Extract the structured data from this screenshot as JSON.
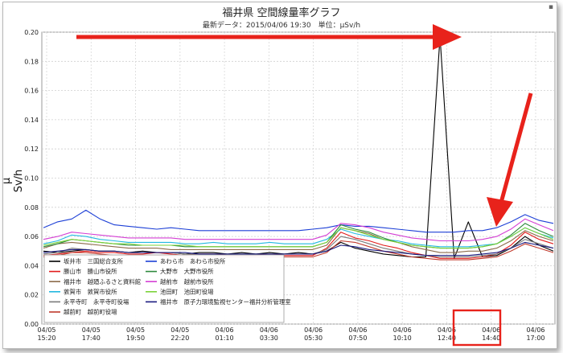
{
  "chart_data": {
    "type": "line",
    "title": "福井県 空間線量率グラフ",
    "subtitle": "最新データ：2015/04/06 19:30　単位：μSv/h",
    "ylabel": "μ Sv/h",
    "ylim": [
      0,
      0.2
    ],
    "yticks": [
      "0.00",
      "0.02",
      "0.04",
      "0.06",
      "0.08",
      "0.10",
      "0.12",
      "0.14",
      "0.16",
      "0.18",
      "0.20"
    ],
    "xticks": [
      {
        "d": "04/05",
        "t": "15:20"
      },
      {
        "d": "04/05",
        "t": "17:40"
      },
      {
        "d": "04/05",
        "t": "19:50"
      },
      {
        "d": "04/05",
        "t": "22:20"
      },
      {
        "d": "04/06",
        "t": "01:10"
      },
      {
        "d": "04/06",
        "t": "03:30"
      },
      {
        "d": "04/06",
        "t": "05:30"
      },
      {
        "d": "04/06",
        "t": "07:50"
      },
      {
        "d": "04/06",
        "t": "10:10"
      },
      {
        "d": "04/06",
        "t": "12:40"
      },
      {
        "d": "04/06",
        "t": "14:40"
      },
      {
        "d": "04/06",
        "t": "17:00"
      }
    ],
    "grid": true,
    "legend_position": "bottom-left",
    "series": [
      {
        "name": "坂井市　三国総合支所",
        "color": "#000000",
        "values": [
          0.05,
          0.049,
          0.05,
          0.051,
          0.05,
          0.05,
          0.049,
          0.05,
          0.049,
          0.049,
          0.048,
          0.049,
          0.049,
          0.048,
          0.049,
          0.048,
          0.049,
          0.048,
          0.049,
          0.048,
          0.05,
          0.056,
          0.052,
          0.05,
          0.048,
          0.047,
          0.046,
          0.046,
          0.197,
          0.045,
          0.07,
          0.046,
          0.047,
          0.052,
          0.06,
          0.054,
          0.05
        ]
      },
      {
        "name": "勝山市　勝山市役所",
        "color": "#e11b1b",
        "values": [
          0.047,
          0.048,
          0.049,
          0.05,
          0.049,
          0.049,
          0.048,
          0.048,
          0.049,
          0.048,
          0.047,
          0.048,
          0.048,
          0.047,
          0.047,
          0.047,
          0.048,
          0.047,
          0.047,
          0.047,
          0.052,
          0.063,
          0.059,
          0.057,
          0.054,
          0.052,
          0.049,
          0.047,
          0.045,
          0.045,
          0.045,
          0.046,
          0.048,
          0.054,
          0.063,
          0.058,
          0.055
        ]
      },
      {
        "name": "福井市　越廼ふるさと資料館",
        "color": "#8c6b4a",
        "values": [
          0.052,
          0.055,
          0.056,
          0.055,
          0.054,
          0.053,
          0.052,
          0.052,
          0.052,
          0.051,
          0.051,
          0.051,
          0.051,
          0.051,
          0.051,
          0.051,
          0.051,
          0.051,
          0.051,
          0.051,
          0.054,
          0.066,
          0.064,
          0.062,
          0.058,
          0.056,
          0.053,
          0.051,
          0.049,
          0.049,
          0.05,
          0.05,
          0.052,
          0.057,
          0.064,
          0.06,
          0.057
        ]
      },
      {
        "name": "敦賀市　敦賀市役所",
        "color": "#22b8e0",
        "values": [
          0.055,
          0.057,
          0.061,
          0.06,
          0.058,
          0.057,
          0.056,
          0.056,
          0.056,
          0.056,
          0.055,
          0.055,
          0.056,
          0.055,
          0.055,
          0.055,
          0.056,
          0.055,
          0.055,
          0.055,
          0.058,
          0.065,
          0.062,
          0.06,
          0.058,
          0.057,
          0.055,
          0.054,
          0.053,
          0.053,
          0.053,
          0.054,
          0.055,
          0.06,
          0.066,
          0.062,
          0.059
        ]
      },
      {
        "name": "永平寺町　永平寺町役場",
        "color": "#7a7a7a",
        "values": [
          0.048,
          0.049,
          0.052,
          0.051,
          0.05,
          0.05,
          0.049,
          0.049,
          0.049,
          0.049,
          0.048,
          0.048,
          0.048,
          0.048,
          0.048,
          0.048,
          0.048,
          0.048,
          0.048,
          0.048,
          0.051,
          0.06,
          0.058,
          0.055,
          0.052,
          0.05,
          0.048,
          0.047,
          0.046,
          0.046,
          0.046,
          0.047,
          0.048,
          0.052,
          0.058,
          0.055,
          0.052
        ]
      },
      {
        "name": "越前町　越前町役場",
        "color": "#c0392b",
        "values": [
          0.046,
          0.047,
          0.049,
          0.049,
          0.048,
          0.047,
          0.047,
          0.047,
          0.047,
          0.046,
          0.046,
          0.046,
          0.046,
          0.046,
          0.046,
          0.046,
          0.046,
          0.046,
          0.046,
          0.046,
          0.049,
          0.057,
          0.056,
          0.053,
          0.05,
          0.048,
          0.046,
          0.045,
          0.044,
          0.044,
          0.044,
          0.045,
          0.046,
          0.05,
          0.055,
          0.052,
          0.049
        ]
      },
      {
        "name": "あわら市　あわら市役所",
        "color": "#1c3fd6",
        "values": [
          0.066,
          0.07,
          0.072,
          0.078,
          0.072,
          0.068,
          0.067,
          0.066,
          0.065,
          0.066,
          0.065,
          0.064,
          0.064,
          0.064,
          0.064,
          0.064,
          0.064,
          0.064,
          0.064,
          0.065,
          0.066,
          0.068,
          0.067,
          0.067,
          0.066,
          0.065,
          0.064,
          0.063,
          0.063,
          0.063,
          0.064,
          0.064,
          0.066,
          0.07,
          0.075,
          0.071,
          0.069
        ]
      },
      {
        "name": "大野市　大野市役所",
        "color": "#2e8b3d",
        "values": [
          0.053,
          0.055,
          0.058,
          0.057,
          0.056,
          0.055,
          0.054,
          0.054,
          0.054,
          0.054,
          0.053,
          0.053,
          0.053,
          0.053,
          0.053,
          0.053,
          0.053,
          0.053,
          0.053,
          0.053,
          0.056,
          0.068,
          0.065,
          0.063,
          0.059,
          0.056,
          0.054,
          0.053,
          0.052,
          0.052,
          0.052,
          0.053,
          0.055,
          0.061,
          0.069,
          0.064,
          0.06
        ]
      },
      {
        "name": "越前市　越前市役所",
        "color": "#d43fd4",
        "values": [
          0.058,
          0.06,
          0.063,
          0.062,
          0.061,
          0.06,
          0.059,
          0.059,
          0.059,
          0.059,
          0.058,
          0.058,
          0.058,
          0.058,
          0.058,
          0.058,
          0.058,
          0.058,
          0.058,
          0.058,
          0.061,
          0.069,
          0.068,
          0.066,
          0.063,
          0.061,
          0.059,
          0.058,
          0.057,
          0.057,
          0.057,
          0.058,
          0.06,
          0.065,
          0.072,
          0.068,
          0.064
        ]
      },
      {
        "name": "池田町　池田町役場",
        "color": "#7bd23a",
        "values": [
          0.054,
          0.056,
          0.058,
          0.057,
          0.056,
          0.055,
          0.055,
          0.054,
          0.054,
          0.054,
          0.054,
          0.053,
          0.053,
          0.053,
          0.053,
          0.053,
          0.053,
          0.053,
          0.053,
          0.053,
          0.056,
          0.066,
          0.064,
          0.061,
          0.058,
          0.056,
          0.054,
          0.053,
          0.052,
          0.052,
          0.052,
          0.053,
          0.055,
          0.06,
          0.066,
          0.062,
          0.058
        ]
      },
      {
        "name": "福井市　原子力環境監視センター福井分析管理室",
        "color": "#1a1a80",
        "values": [
          0.049,
          0.05,
          0.051,
          0.051,
          0.05,
          0.05,
          0.049,
          0.049,
          0.049,
          0.049,
          0.049,
          0.048,
          0.048,
          0.048,
          0.048,
          0.048,
          0.048,
          0.048,
          0.048,
          0.048,
          0.05,
          0.054,
          0.053,
          0.051,
          0.05,
          0.049,
          0.048,
          0.047,
          0.047,
          0.047,
          0.047,
          0.048,
          0.049,
          0.052,
          0.056,
          0.054,
          0.052
        ]
      }
    ]
  },
  "corner_mark": "▪"
}
